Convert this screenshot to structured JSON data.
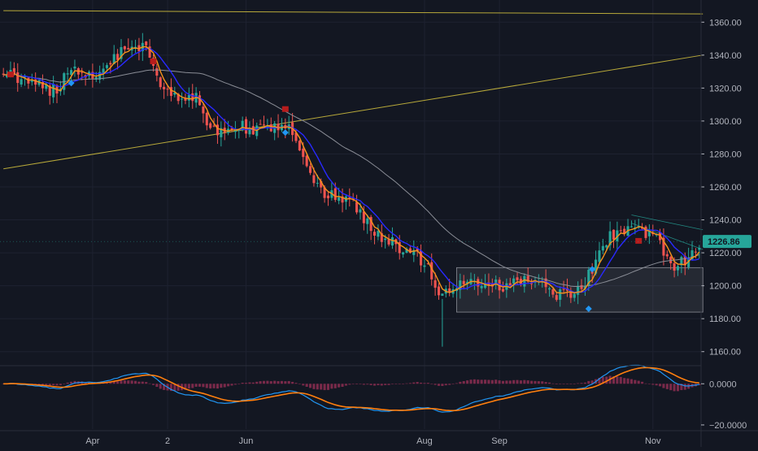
{
  "colors": {
    "background": "#131722",
    "grid": "#1e2230",
    "axis_text": "#b2b5be",
    "up": "#26a69a",
    "down": "#ef5350",
    "ma_fast": "#f7931a",
    "ma_mid": "#2929ff",
    "ma_slow": "#8a8d96",
    "trendline": "#b8a93a",
    "macd": "#2196f3",
    "signal": "#ff7f0e",
    "hist": "#7a2a4a",
    "badge": "#26a69a",
    "box_fill": "rgba(255,255,255,0.08)",
    "box_edge": "#8a8d96",
    "sell_marker": "#b71c1c",
    "buy_marker": "#2196f3"
  },
  "chart_data": {
    "type": "candlestick",
    "ylim": [
      1150,
      1370
    ],
    "y_ticks": [
      "1360.00",
      "1340.00",
      "1320.00",
      "1300.00",
      "1280.00",
      "1260.00",
      "1240.00",
      "1220.00",
      "1200.00",
      "1180.00",
      "1160.00"
    ],
    "y_tick_values": [
      1360,
      1340,
      1320,
      1300,
      1280,
      1260,
      1240,
      1220,
      1200,
      1180,
      1160
    ],
    "x_ticks": [
      "Apr",
      "2",
      "Jun",
      "Aug",
      "Sep",
      "Nov"
    ],
    "x_tick_index": [
      25,
      46,
      68,
      118,
      139,
      182
    ],
    "bar_count": 196,
    "last_price": "1226.86",
    "last_price_value": 1226.86,
    "waypoints": [
      [
        0,
        1330
      ],
      [
        8,
        1322
      ],
      [
        15,
        1318
      ],
      [
        18,
        1332
      ],
      [
        24,
        1326
      ],
      [
        30,
        1335
      ],
      [
        34,
        1343
      ],
      [
        38,
        1346
      ],
      [
        40,
        1345
      ],
      [
        42,
        1330
      ],
      [
        46,
        1318
      ],
      [
        50,
        1314
      ],
      [
        54,
        1314
      ],
      [
        57,
        1296
      ],
      [
        62,
        1292
      ],
      [
        66,
        1297
      ],
      [
        70,
        1294
      ],
      [
        76,
        1296
      ],
      [
        80,
        1300
      ],
      [
        83,
        1280
      ],
      [
        87,
        1266
      ],
      [
        90,
        1256
      ],
      [
        93,
        1253
      ],
      [
        97,
        1254
      ],
      [
        100,
        1244
      ],
      [
        104,
        1232
      ],
      [
        108,
        1228
      ],
      [
        112,
        1221
      ],
      [
        116,
        1218
      ],
      [
        119,
        1210
      ],
      [
        122,
        1192
      ],
      [
        125,
        1197
      ],
      [
        129,
        1200
      ],
      [
        134,
        1202
      ],
      [
        140,
        1200
      ],
      [
        146,
        1202
      ],
      [
        150,
        1203
      ],
      [
        155,
        1195
      ],
      [
        159,
        1194
      ],
      [
        163,
        1202
      ],
      [
        165,
        1210
      ],
      [
        169,
        1228
      ],
      [
        172,
        1232
      ],
      [
        178,
        1234
      ],
      [
        182,
        1230
      ],
      [
        185,
        1222
      ],
      [
        188,
        1212
      ],
      [
        191,
        1216
      ],
      [
        195,
        1227
      ]
    ],
    "volatility_events": [
      [
        123,
        1163,
        1192
      ]
    ],
    "trendlines": [
      {
        "from": [
          0,
          1367
        ],
        "to": [
          196,
          1365
        ]
      },
      {
        "from": [
          0,
          1271
        ],
        "to": [
          196,
          1340
        ]
      }
    ],
    "range_box": {
      "x_from": 127,
      "x_to": 196,
      "y_from": 1184,
      "y_to": 1211
    },
    "wedge_lines": [
      {
        "from": [
          176,
          1243
        ],
        "to": [
          196,
          1234
        ]
      },
      {
        "from": [
          176,
          1238
        ],
        "to": [
          196,
          1222
        ]
      }
    ],
    "sell_markers": [
      [
        2,
        1328
      ],
      [
        42,
        1336
      ],
      [
        79,
        1307
      ],
      [
        178,
        1227
      ]
    ],
    "buy_markers": [
      [
        19,
        1323
      ],
      [
        79,
        1293
      ],
      [
        164,
        1186
      ],
      [
        165,
        1210
      ]
    ],
    "indicator": {
      "y_ticks": [
        "0.0000",
        "−20.0000"
      ],
      "y_tick_values": [
        0,
        -20
      ],
      "ylim": [
        -22,
        8
      ]
    }
  }
}
